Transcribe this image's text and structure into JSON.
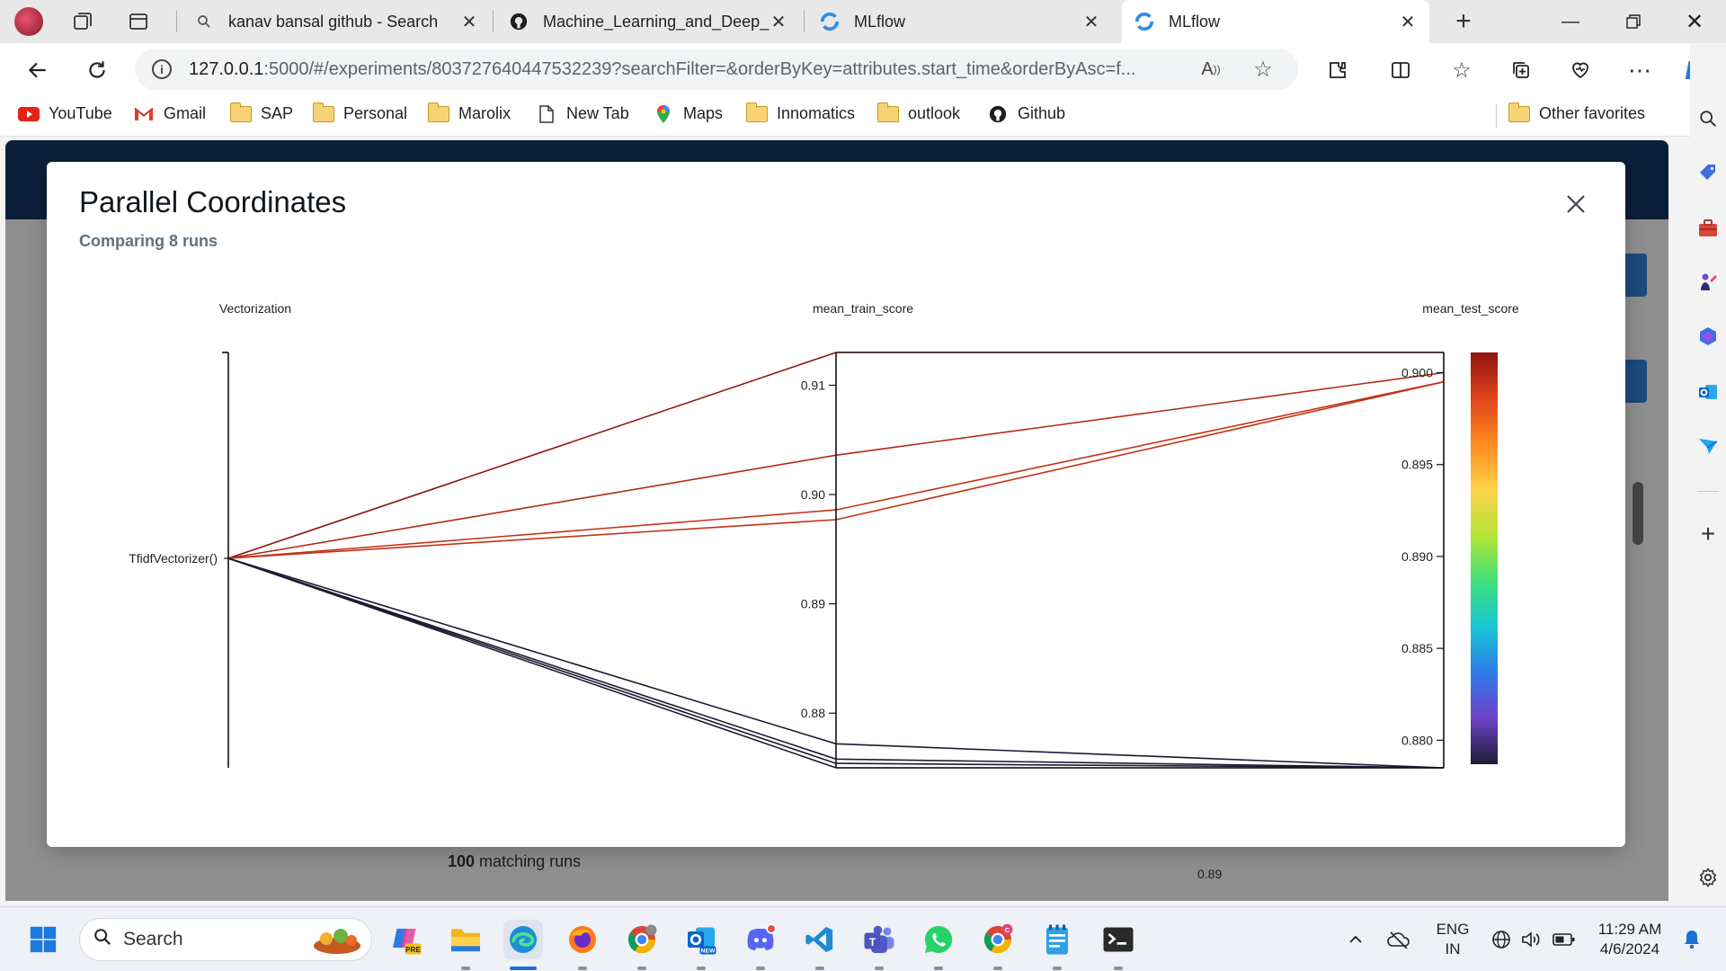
{
  "browser": {
    "tabs": [
      {
        "title": "kanav bansal github - Search",
        "icon": "search-icon",
        "active": false
      },
      {
        "title": "Machine_Learning_and_Deep_Le",
        "icon": "github-icon",
        "active": false
      },
      {
        "title": "MLflow",
        "icon": "mlflow-icon",
        "active": false
      },
      {
        "title": "MLflow",
        "icon": "mlflow-icon",
        "active": true
      }
    ],
    "url": {
      "host": "127.0.0.1",
      "rest": ":5000/#/experiments/803727640447532239?searchFilter=&orderByKey=attributes.start_time&orderByAsc=f..."
    },
    "favorites": [
      {
        "label": "YouTube",
        "icon": "youtube-icon"
      },
      {
        "label": "Gmail",
        "icon": "gmail-icon"
      },
      {
        "label": "SAP",
        "icon": "folder-icon"
      },
      {
        "label": "Personal",
        "icon": "folder-icon"
      },
      {
        "label": "Marolix",
        "icon": "folder-icon"
      },
      {
        "label": "New Tab",
        "icon": "page-icon"
      },
      {
        "label": "Maps",
        "icon": "maps-icon"
      },
      {
        "label": "Innomatics",
        "icon": "folder-icon"
      },
      {
        "label": "outlook",
        "icon": "folder-icon"
      },
      {
        "label": "Github",
        "icon": "github-icon"
      }
    ],
    "other_favorites": "Other favorites"
  },
  "page": {
    "matching_runs_count": "100",
    "matching_runs_label": " matching runs",
    "bottom_tick": "0.89"
  },
  "modal": {
    "title": "Parallel Coordinates",
    "subtitle": "Comparing 8 runs"
  },
  "chart_data": {
    "type": "parallel_coordinates",
    "dimensions": [
      {
        "name": "Vectorization",
        "categorical": true,
        "ticks": [
          "TfidfVectorizer()"
        ]
      },
      {
        "name": "mean_train_score",
        "range": [
          0.875,
          0.913
        ],
        "ticks": [
          "0.91",
          "0.90",
          "0.89",
          "0.88"
        ]
      },
      {
        "name": "mean_test_score",
        "range": [
          0.8785,
          0.9011
        ],
        "ticks": [
          "0.900",
          "0.895",
          "0.890",
          "0.885",
          "0.880"
        ]
      }
    ],
    "color_by": "mean_test_score",
    "colorscale": [
      "#1b1b33",
      "#6f42c8",
      "#2f7be9",
      "#18c6d6",
      "#3fe07a",
      "#b5e536",
      "#ffd24a",
      "#ff8a1f",
      "#e0431b",
      "#8f1510"
    ],
    "runs": [
      {
        "Vectorization": "TfidfVectorizer()",
        "mean_train_score": 0.913,
        "mean_test_score": 0.9011
      },
      {
        "Vectorization": "TfidfVectorizer()",
        "mean_train_score": 0.9036,
        "mean_test_score": 0.9
      },
      {
        "Vectorization": "TfidfVectorizer()",
        "mean_train_score": 0.8986,
        "mean_test_score": 0.8995
      },
      {
        "Vectorization": "TfidfVectorizer()",
        "mean_train_score": 0.8977,
        "mean_test_score": 0.8995
      },
      {
        "Vectorization": "TfidfVectorizer()",
        "mean_train_score": 0.8772,
        "mean_test_score": 0.8785
      },
      {
        "Vectorization": "TfidfVectorizer()",
        "mean_train_score": 0.8758,
        "mean_test_score": 0.8785
      },
      {
        "Vectorization": "TfidfVectorizer()",
        "mean_train_score": 0.8754,
        "mean_test_score": 0.8785
      },
      {
        "Vectorization": "TfidfVectorizer()",
        "mean_train_score": 0.875,
        "mean_test_score": 0.8785
      }
    ]
  },
  "taskbar": {
    "search_placeholder": "Search",
    "language_line1": "ENG",
    "language_line2": "IN",
    "time": "11:29 AM",
    "date": "4/6/2024"
  }
}
